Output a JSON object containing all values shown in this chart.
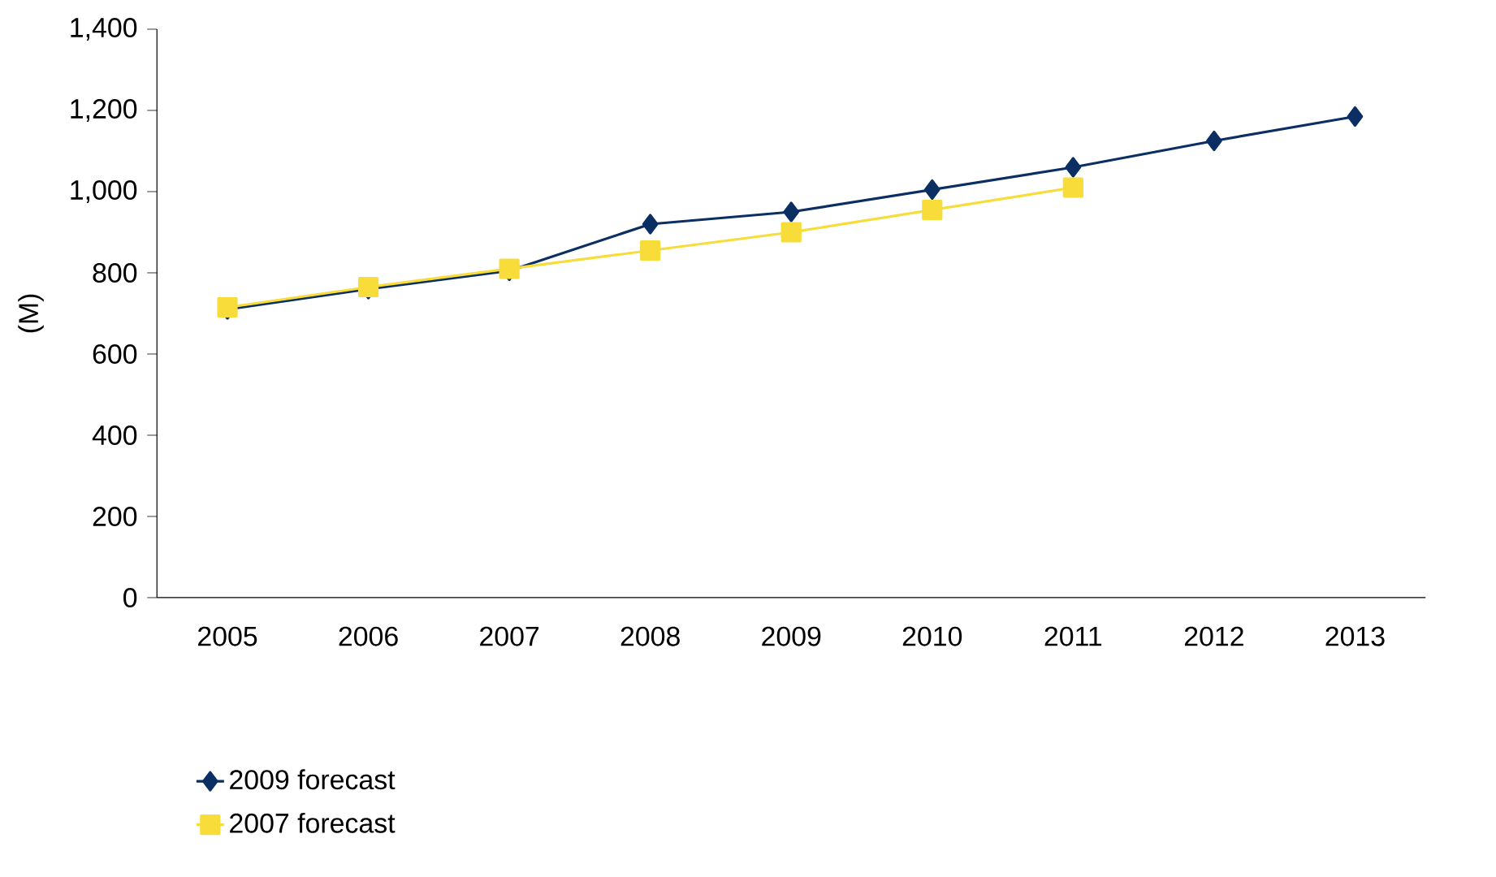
{
  "chart_data": {
    "type": "line",
    "ylabel": "(M)",
    "categories": [
      "2005",
      "2006",
      "2007",
      "2008",
      "2009",
      "2010",
      "2011",
      "2012",
      "2013"
    ],
    "series": [
      {
        "name": "2009 forecast",
        "color": "#0b2f63",
        "marker": "diamond",
        "values": [
          710,
          760,
          805,
          920,
          950,
          1005,
          1060,
          1125,
          1185
        ]
      },
      {
        "name": "2007 forecast",
        "color": "#f7dc3a",
        "marker": "square",
        "values": [
          715,
          765,
          810,
          855,
          900,
          955,
          1010,
          null,
          null
        ]
      }
    ],
    "ylim": [
      0,
      1400
    ],
    "yticks": [
      0,
      200,
      400,
      600,
      800,
      {
        "value": 1000,
        "label": "1,000"
      },
      {
        "value": 1200,
        "label": "1,200"
      },
      {
        "value": 1400,
        "label": "1,400"
      }
    ],
    "grid": false,
    "legend": "bottom left"
  }
}
